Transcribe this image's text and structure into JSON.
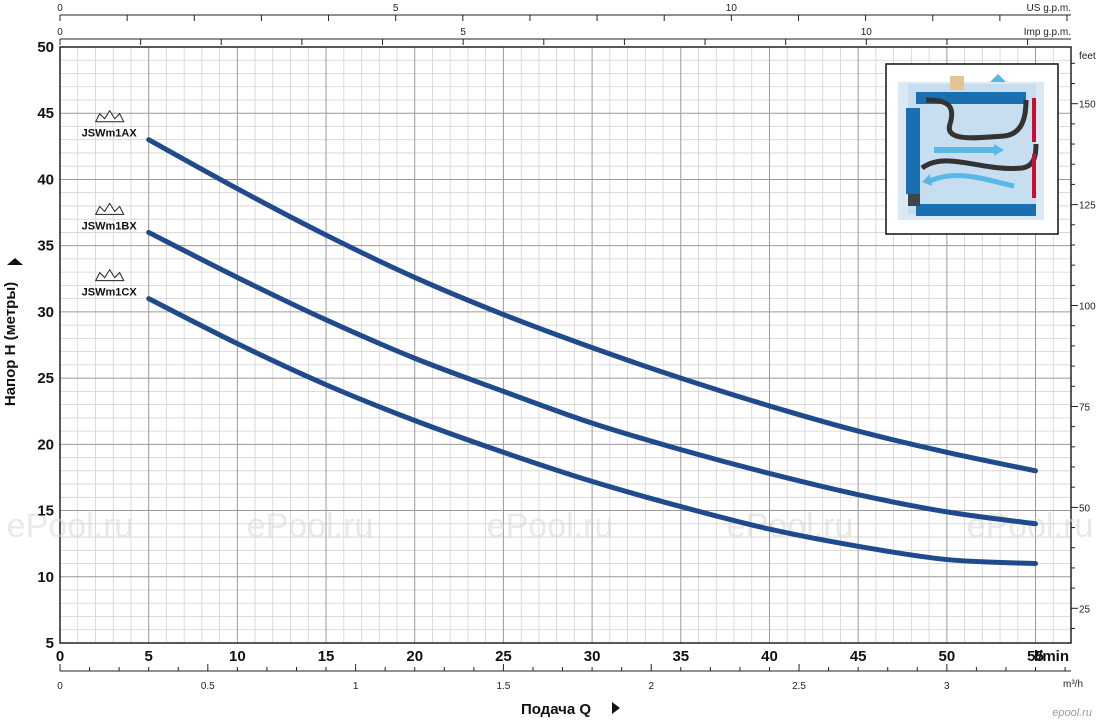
{
  "chart_data": {
    "type": "line",
    "xlabel": "Подача Q",
    "ylabel": "Напор H (метры)",
    "xlim": [
      0,
      57
    ],
    "ylim": [
      5,
      50
    ],
    "x_ticks": [
      0,
      5,
      10,
      15,
      20,
      25,
      30,
      35,
      40,
      45,
      50,
      55
    ],
    "x_unit": "l/min",
    "y_ticks": [
      5,
      10,
      15,
      20,
      25,
      30,
      35,
      40,
      45,
      50
    ],
    "secondary_axes": {
      "us_gpm": {
        "label": "US g.p.m.",
        "ticks": [
          0,
          5,
          10
        ]
      },
      "imp_gpm": {
        "label": "Imp g.p.m.",
        "ticks": [
          0,
          5,
          10
        ]
      },
      "m3h": {
        "label": "m³/h",
        "ticks": [
          "0",
          "0.5",
          "1",
          "1.5",
          "2",
          "2.5",
          "3"
        ]
      },
      "feet": {
        "label": "feet",
        "ticks": [
          25,
          50,
          75,
          100,
          125,
          150
        ]
      }
    },
    "grid": true,
    "series": [
      {
        "name": "JSWm1AX",
        "x": [
          5,
          10,
          15,
          20,
          25,
          30,
          35,
          40,
          45,
          50,
          55
        ],
        "y": [
          43,
          39.3,
          35.8,
          32.6,
          29.8,
          27.3,
          25,
          22.9,
          21,
          19.4,
          18
        ]
      },
      {
        "name": "JSWm1BX",
        "x": [
          5,
          10,
          15,
          20,
          25,
          30,
          35,
          40,
          45,
          50,
          55
        ],
        "y": [
          36,
          32.6,
          29.4,
          26.5,
          24,
          21.6,
          19.6,
          17.8,
          16.2,
          14.9,
          14
        ]
      },
      {
        "name": "JSWm1CX",
        "x": [
          5,
          10,
          15,
          20,
          25,
          30,
          35,
          40,
          45,
          50,
          55
        ],
        "y": [
          31,
          27.6,
          24.5,
          21.8,
          19.4,
          17.2,
          15.3,
          13.6,
          12.3,
          11.3,
          11
        ]
      }
    ],
    "line_color": "#1f4b8c"
  },
  "watermark": "ePool.ru",
  "site_mark": "epool.ru"
}
